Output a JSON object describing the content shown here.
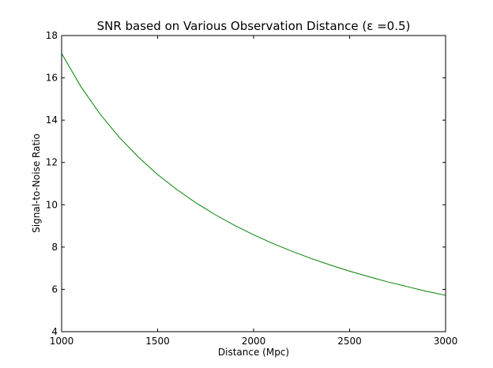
{
  "chart_data": {
    "type": "line",
    "title": "SNR based on Various Observation Distance (ε =0.5)",
    "xlabel": "Distance (Mpc)",
    "ylabel": "Signal-to-Noise Ratio",
    "xlim": [
      1000,
      3000
    ],
    "ylim": [
      4,
      18
    ],
    "xticks": [
      1000,
      1500,
      2000,
      2500,
      3000
    ],
    "yticks": [
      4,
      6,
      8,
      10,
      12,
      14,
      16,
      18
    ],
    "grid": false,
    "series": [
      {
        "color": "#008000",
        "x": [
          1000,
          1100,
          1200,
          1300,
          1400,
          1500,
          1600,
          1700,
          1800,
          1900,
          2000,
          2100,
          2200,
          2300,
          2400,
          2500,
          2600,
          2700,
          2800,
          2900,
          3000
        ],
        "y": [
          17.15,
          15.59,
          14.29,
          13.19,
          12.25,
          11.43,
          10.72,
          10.09,
          9.53,
          9.03,
          8.58,
          8.17,
          7.8,
          7.46,
          7.15,
          6.86,
          6.6,
          6.35,
          6.13,
          5.91,
          5.72
        ]
      }
    ]
  }
}
